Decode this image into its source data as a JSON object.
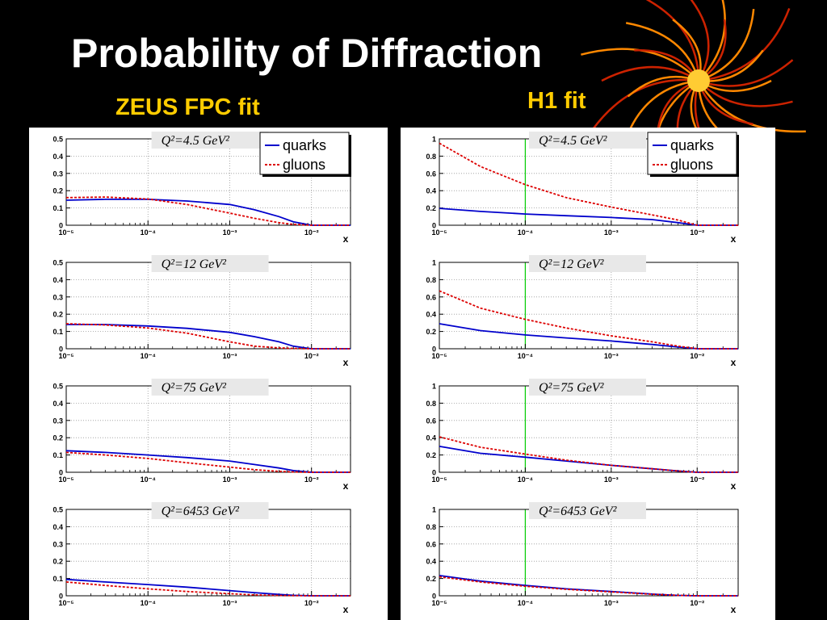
{
  "title": "Probability of Diffraction",
  "column_titles": {
    "zeus": "ZEUS FPC fit",
    "h1": "H1 fit"
  },
  "legend": {
    "quarks": "quarks",
    "gluons": "gluons"
  },
  "colors": {
    "quarks": "#0000cc",
    "gluons": "#dd0000",
    "vline": "#00cc00",
    "title": "#ffffff",
    "column_title": "#ffcc00"
  },
  "chart_data": [
    {
      "type": "line",
      "panel": "zeus",
      "q2": "Q²=4.5 GeV²",
      "xlabel": "x",
      "xscale": "log",
      "xlim": [
        1e-05,
        0.03
      ],
      "ylim": [
        0,
        0.5
      ],
      "xticks": [
        "10⁻⁵",
        "10⁻⁴",
        "10⁻³",
        "10⁻²"
      ],
      "yticks": [
        "0",
        "0.1",
        "0.2",
        "0.3",
        "0.4",
        "0.5"
      ],
      "legend": true,
      "vline": null,
      "series": [
        {
          "name": "quarks",
          "x": [
            1e-05,
            3e-05,
            0.0001,
            0.0003,
            0.001,
            0.002,
            0.004,
            0.006,
            0.01,
            0.03
          ],
          "y": [
            0.145,
            0.15,
            0.15,
            0.14,
            0.12,
            0.09,
            0.05,
            0.02,
            0,
            0
          ]
        },
        {
          "name": "gluons",
          "x": [
            1e-05,
            3e-05,
            0.0001,
            0.0003,
            0.001,
            0.002,
            0.004,
            0.006,
            0.01,
            0.03
          ],
          "y": [
            0.16,
            0.163,
            0.152,
            0.12,
            0.07,
            0.04,
            0.015,
            0.005,
            0,
            0
          ]
        }
      ]
    },
    {
      "type": "line",
      "panel": "zeus",
      "q2": "Q²=12 GeV²",
      "xlabel": "x",
      "xscale": "log",
      "xlim": [
        1e-05,
        0.03
      ],
      "ylim": [
        0,
        0.5
      ],
      "xticks": [
        "10⁻⁵",
        "10⁻⁴",
        "10⁻³",
        "10⁻²"
      ],
      "yticks": [
        "0",
        "0.1",
        "0.2",
        "0.3",
        "0.4",
        "0.5"
      ],
      "legend": false,
      "vline": null,
      "series": [
        {
          "name": "quarks",
          "x": [
            1e-05,
            3e-05,
            0.0001,
            0.0003,
            0.001,
            0.002,
            0.004,
            0.006,
            0.01,
            0.03
          ],
          "y": [
            0.14,
            0.14,
            0.132,
            0.118,
            0.095,
            0.07,
            0.04,
            0.015,
            0,
            0
          ]
        },
        {
          "name": "gluons",
          "x": [
            1e-05,
            3e-05,
            0.0001,
            0.0003,
            0.001,
            0.002,
            0.004,
            0.006,
            0.01,
            0.03
          ],
          "y": [
            0.145,
            0.138,
            0.12,
            0.09,
            0.04,
            0.015,
            0.005,
            0.002,
            0,
            0
          ]
        }
      ]
    },
    {
      "type": "line",
      "panel": "zeus",
      "q2": "Q²=75 GeV²",
      "xlabel": "x",
      "xscale": "log",
      "xlim": [
        1e-05,
        0.03
      ],
      "ylim": [
        0,
        0.5
      ],
      "xticks": [
        "10⁻⁵",
        "10⁻⁴",
        "10⁻³",
        "10⁻²"
      ],
      "yticks": [
        "0",
        "0.1",
        "0.2",
        "0.3",
        "0.4",
        "0.5"
      ],
      "legend": false,
      "vline": null,
      "series": [
        {
          "name": "quarks",
          "x": [
            1e-05,
            3e-05,
            0.0001,
            0.0003,
            0.001,
            0.002,
            0.004,
            0.006,
            0.01,
            0.03
          ],
          "y": [
            0.125,
            0.115,
            0.1,
            0.085,
            0.065,
            0.045,
            0.025,
            0.01,
            0,
            0
          ]
        },
        {
          "name": "gluons",
          "x": [
            1e-05,
            3e-05,
            0.0001,
            0.0003,
            0.001,
            0.002,
            0.004,
            0.006,
            0.01,
            0.03
          ],
          "y": [
            0.115,
            0.1,
            0.08,
            0.055,
            0.03,
            0.015,
            0.005,
            0.002,
            0,
            0
          ]
        }
      ]
    },
    {
      "type": "line",
      "panel": "zeus",
      "q2": "Q²=6453 GeV²",
      "xlabel": "x",
      "xscale": "log",
      "xlim": [
        1e-05,
        0.03
      ],
      "ylim": [
        0,
        0.5
      ],
      "xticks": [
        "10⁻⁵",
        "10⁻⁴",
        "10⁻³",
        "10⁻²"
      ],
      "yticks": [
        "0",
        "0.1",
        "0.2",
        "0.3",
        "0.4",
        "0.5"
      ],
      "legend": false,
      "vline": null,
      "series": [
        {
          "name": "quarks",
          "x": [
            1e-05,
            3e-05,
            0.0001,
            0.0003,
            0.001,
            0.002,
            0.004,
            0.006,
            0.01,
            0.03
          ],
          "y": [
            0.095,
            0.08,
            0.065,
            0.05,
            0.03,
            0.018,
            0.008,
            0.003,
            0,
            0
          ]
        },
        {
          "name": "gluons",
          "x": [
            1e-05,
            3e-05,
            0.0001,
            0.0003,
            0.001,
            0.002,
            0.004,
            0.006,
            0.01,
            0.03
          ],
          "y": [
            0.08,
            0.06,
            0.04,
            0.025,
            0.012,
            0.005,
            0.002,
            0.001,
            0,
            0
          ]
        }
      ]
    },
    {
      "type": "line",
      "panel": "h1",
      "q2": "Q²=4.5 GeV²",
      "xlabel": "x",
      "xscale": "log",
      "xlim": [
        1e-05,
        0.03
      ],
      "ylim": [
        0,
        1
      ],
      "xticks": [
        "10⁻⁵",
        "10⁻⁴",
        "10⁻³",
        "10⁻²"
      ],
      "yticks": [
        "0",
        "0.2",
        "0.4",
        "0.6",
        "0.8",
        "1"
      ],
      "legend": true,
      "vline": 0.0001,
      "series": [
        {
          "name": "quarks",
          "x": [
            1e-05,
            3e-05,
            0.0001,
            0.0003,
            0.001,
            0.003,
            0.006,
            0.01,
            0.03
          ],
          "y": [
            0.195,
            0.16,
            0.13,
            0.11,
            0.09,
            0.065,
            0.03,
            0,
            0
          ]
        },
        {
          "name": "gluons",
          "x": [
            1e-05,
            3e-05,
            0.0001,
            0.0003,
            0.001,
            0.003,
            0.006,
            0.01,
            0.03
          ],
          "y": [
            0.95,
            0.68,
            0.47,
            0.32,
            0.21,
            0.12,
            0.06,
            0,
            0
          ]
        }
      ]
    },
    {
      "type": "line",
      "panel": "h1",
      "q2": "Q²=12 GeV²",
      "xlabel": "x",
      "xscale": "log",
      "xlim": [
        1e-05,
        0.03
      ],
      "ylim": [
        0,
        1
      ],
      "xticks": [
        "10⁻⁵",
        "10⁻⁴",
        "10⁻³",
        "10⁻²"
      ],
      "yticks": [
        "0",
        "0.2",
        "0.4",
        "0.6",
        "0.8",
        "1"
      ],
      "legend": false,
      "vline": 0.0001,
      "series": [
        {
          "name": "quarks",
          "x": [
            1e-05,
            3e-05,
            0.0001,
            0.0003,
            0.001,
            0.003,
            0.006,
            0.01,
            0.03
          ],
          "y": [
            0.29,
            0.21,
            0.16,
            0.125,
            0.09,
            0.05,
            0.02,
            0,
            0
          ]
        },
        {
          "name": "gluons",
          "x": [
            1e-05,
            3e-05,
            0.0001,
            0.0003,
            0.001,
            0.003,
            0.006,
            0.01,
            0.03
          ],
          "y": [
            0.67,
            0.47,
            0.34,
            0.24,
            0.15,
            0.08,
            0.03,
            0,
            0
          ]
        }
      ]
    },
    {
      "type": "line",
      "panel": "h1",
      "q2": "Q²=75 GeV²",
      "xlabel": "x",
      "xscale": "log",
      "xlim": [
        1e-05,
        0.03
      ],
      "ylim": [
        0,
        1
      ],
      "xticks": [
        "10⁻⁵",
        "10⁻⁴",
        "10⁻³",
        "10⁻²"
      ],
      "yticks": [
        "0",
        "0.2",
        "0.4",
        "0.6",
        "0.8",
        "1"
      ],
      "legend": false,
      "vline": 0.0001,
      "series": [
        {
          "name": "quarks",
          "x": [
            1e-05,
            3e-05,
            0.0001,
            0.0003,
            0.001,
            0.003,
            0.006,
            0.01,
            0.03
          ],
          "y": [
            0.3,
            0.22,
            0.175,
            0.13,
            0.08,
            0.04,
            0.015,
            0,
            0
          ]
        },
        {
          "name": "gluons",
          "x": [
            1e-05,
            3e-05,
            0.0001,
            0.0003,
            0.001,
            0.003,
            0.006,
            0.01,
            0.03
          ],
          "y": [
            0.41,
            0.29,
            0.21,
            0.14,
            0.08,
            0.04,
            0.015,
            0,
            0
          ]
        }
      ]
    },
    {
      "type": "line",
      "panel": "h1",
      "q2": "Q²=6453 GeV²",
      "xlabel": "x",
      "xscale": "log",
      "xlim": [
        1e-05,
        0.03
      ],
      "ylim": [
        0,
        1
      ],
      "xticks": [
        "10⁻⁵",
        "10⁻⁴",
        "10⁻³",
        "10⁻²"
      ],
      "yticks": [
        "0",
        "0.2",
        "0.4",
        "0.6",
        "0.8",
        "1"
      ],
      "legend": false,
      "vline": 0.0001,
      "series": [
        {
          "name": "quarks",
          "x": [
            1e-05,
            3e-05,
            0.0001,
            0.0003,
            0.001,
            0.003,
            0.006,
            0.01,
            0.03
          ],
          "y": [
            0.235,
            0.17,
            0.12,
            0.08,
            0.05,
            0.02,
            0.005,
            0,
            0
          ]
        },
        {
          "name": "gluons",
          "x": [
            1e-05,
            3e-05,
            0.0001,
            0.0003,
            0.001,
            0.003,
            0.006,
            0.01,
            0.03
          ],
          "y": [
            0.22,
            0.16,
            0.11,
            0.075,
            0.045,
            0.018,
            0.005,
            0,
            0
          ]
        }
      ]
    }
  ]
}
